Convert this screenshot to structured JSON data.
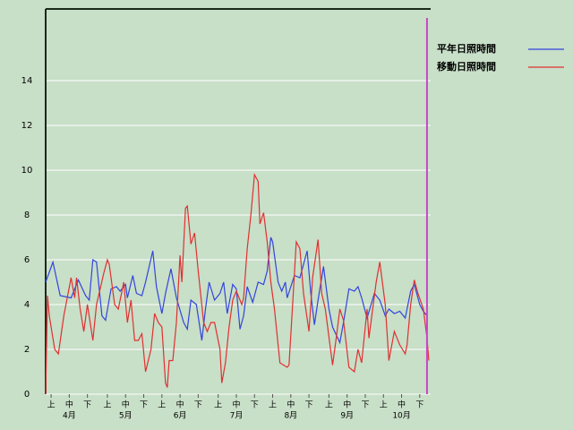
{
  "chart_data": {
    "type": "line",
    "xlim": [
      0,
      212
    ],
    "ylim": [
      0,
      17.2
    ],
    "yticks": [
      0,
      2,
      4,
      6,
      8,
      10,
      12,
      14
    ],
    "grid": true,
    "legend": "top-right",
    "xticks": [
      {
        "value": 3,
        "label": "上"
      },
      {
        "value": 13,
        "label": "中"
      },
      {
        "value": 23,
        "label": "下"
      },
      {
        "value": 34,
        "label": "上"
      },
      {
        "value": 44,
        "label": "中"
      },
      {
        "value": 54,
        "label": "下"
      },
      {
        "value": 64,
        "label": "上"
      },
      {
        "value": 74,
        "label": "中"
      },
      {
        "value": 84,
        "label": "下"
      },
      {
        "value": 95,
        "label": "上"
      },
      {
        "value": 105,
        "label": "中"
      },
      {
        "value": 115,
        "label": "下"
      },
      {
        "value": 125,
        "label": "上"
      },
      {
        "value": 135,
        "label": "中"
      },
      {
        "value": 145,
        "label": "下"
      },
      {
        "value": 156,
        "label": "上"
      },
      {
        "value": 166,
        "label": "中"
      },
      {
        "value": 176,
        "label": "下"
      },
      {
        "value": 186,
        "label": "上"
      },
      {
        "value": 196,
        "label": "中"
      },
      {
        "value": 206,
        "label": "下"
      }
    ],
    "month_ticks": [
      {
        "value": 13,
        "label": "4月"
      },
      {
        "value": 44,
        "label": "5月"
      },
      {
        "value": 74,
        "label": "6月"
      },
      {
        "value": 105,
        "label": "7月"
      },
      {
        "value": 135,
        "label": "8月"
      },
      {
        "value": 166,
        "label": "9月"
      },
      {
        "value": 196,
        "label": "10月"
      }
    ],
    "marker_x": 210,
    "marker_color": "#cc44cc",
    "series": [
      {
        "name": "平年日照時間",
        "color": "#3344dd",
        "x": [
          0,
          4,
          8,
          14,
          17,
          18,
          22,
          24,
          26,
          28,
          31,
          33,
          36,
          39,
          41,
          44,
          45,
          48,
          50,
          53,
          55,
          59,
          61,
          64,
          66,
          69,
          72,
          76,
          78,
          80,
          83,
          86,
          88,
          90,
          93,
          96,
          98,
          100,
          103,
          105,
          107,
          109,
          111,
          114,
          117,
          120,
          122,
          124,
          125,
          128,
          130,
          132,
          133,
          137,
          140,
          144,
          146,
          148,
          150,
          153,
          156,
          158,
          162,
          164,
          167,
          170,
          172,
          174,
          177,
          181,
          184,
          187,
          189,
          192,
          195,
          198,
          201,
          203,
          206,
          208,
          210
        ],
        "values": [
          5.0,
          5.9,
          4.4,
          4.3,
          4.9,
          5.1,
          4.4,
          4.2,
          6.0,
          5.9,
          3.5,
          3.3,
          4.7,
          4.8,
          4.6,
          4.9,
          4.3,
          5.3,
          4.5,
          4.4,
          5.0,
          6.4,
          4.8,
          3.6,
          4.5,
          5.6,
          4.3,
          3.2,
          2.9,
          4.2,
          4.0,
          2.4,
          3.8,
          5.0,
          4.2,
          4.5,
          5.0,
          3.6,
          4.9,
          4.7,
          2.9,
          3.5,
          4.8,
          4.1,
          5.0,
          4.9,
          5.5,
          7.0,
          6.8,
          5.0,
          4.6,
          5.0,
          4.3,
          5.3,
          5.2,
          6.4,
          4.5,
          3.1,
          4.2,
          5.7,
          3.8,
          3.0,
          2.3,
          3.2,
          4.7,
          4.6,
          4.8,
          4.3,
          3.4,
          4.5,
          4.2,
          3.5,
          3.8,
          3.6,
          3.7,
          3.4,
          4.6,
          4.9,
          4.0,
          3.7,
          3.5
        ]
      },
      {
        "name": "移動日照時間",
        "color": "#e03030",
        "x": [
          0,
          1,
          2,
          5,
          7,
          10,
          14,
          16,
          17,
          19,
          21,
          23,
          26,
          28,
          32,
          34,
          35,
          38,
          40,
          43,
          45,
          47,
          49,
          51,
          53,
          55,
          58,
          60,
          62,
          64,
          66,
          67,
          68,
          70,
          72,
          74,
          75,
          77,
          78,
          80,
          82,
          84,
          87,
          89,
          91,
          93,
          96,
          97,
          99,
          101,
          103,
          105,
          108,
          109,
          111,
          113,
          115,
          117,
          118,
          120,
          122,
          124,
          126,
          129,
          133,
          134,
          136,
          138,
          140,
          142,
          145,
          147,
          150,
          152,
          154,
          158,
          160,
          162,
          164,
          167,
          170,
          172,
          174,
          177,
          178,
          182,
          184,
          187,
          189,
          192,
          195,
          198,
          199,
          201,
          203,
          205,
          208,
          210,
          211
        ],
        "values": [
          0,
          4.4,
          3.5,
          2.0,
          1.8,
          3.5,
          5.2,
          4.3,
          5.2,
          3.8,
          2.8,
          4.0,
          2.4,
          4.0,
          5.4,
          6.0,
          5.8,
          4.0,
          3.8,
          5.0,
          3.2,
          4.2,
          2.4,
          2.4,
          2.7,
          1.0,
          2.0,
          3.6,
          3.2,
          3.0,
          0.5,
          0.3,
          1.5,
          1.5,
          3.2,
          6.2,
          5.0,
          8.3,
          8.4,
          6.7,
          7.2,
          5.5,
          3.2,
          2.8,
          3.2,
          3.2,
          2.0,
          0.5,
          1.4,
          3.0,
          4.2,
          4.6,
          4.0,
          4.3,
          6.5,
          8.0,
          9.8,
          9.5,
          7.6,
          8.1,
          6.8,
          5.0,
          3.8,
          1.4,
          1.2,
          1.3,
          4.0,
          6.8,
          6.5,
          4.5,
          2.8,
          5.2,
          6.9,
          4.5,
          3.8,
          1.3,
          2.5,
          3.8,
          3.3,
          1.2,
          1.0,
          2.0,
          1.4,
          3.8,
          2.5,
          5.0,
          5.9,
          4.0,
          1.5,
          2.8,
          2.2,
          1.8,
          2.2,
          4.0,
          5.1,
          4.5,
          3.8,
          2.5,
          1.5
        ]
      }
    ]
  }
}
